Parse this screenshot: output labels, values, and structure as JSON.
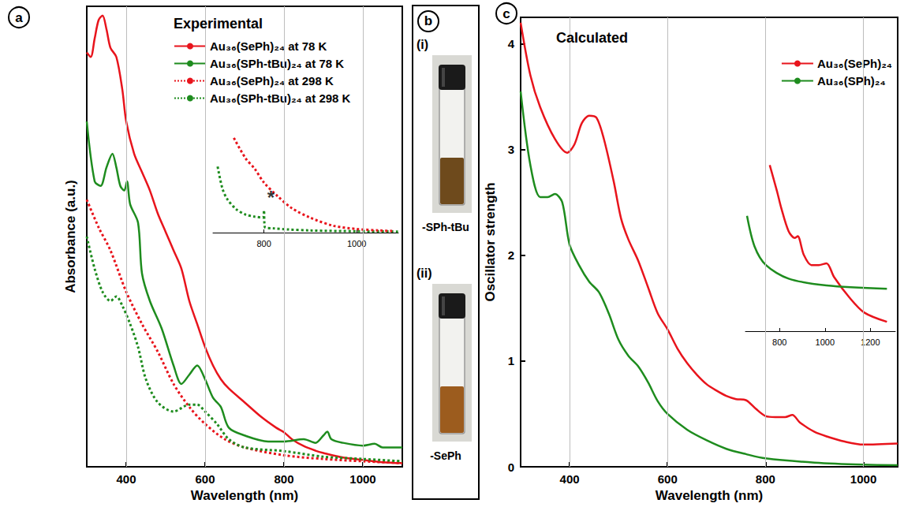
{
  "chart_data": [
    {
      "type": "line",
      "panel_letter": "a",
      "title": "Experimental",
      "x_label": "Wavelength (nm)",
      "y_label": "Absorbance (a.u.)",
      "xlim": [
        300,
        1100
      ],
      "xticks": [
        400,
        600,
        800,
        1000
      ],
      "ylim": [
        0,
        1
      ],
      "tick_labels": "x",
      "grid": true,
      "legend": "upper right",
      "series": [
        {
          "name": "Au₃₆(SePh)₂₄ at 78 K",
          "color": "#e8141c",
          "line_style": "solid",
          "x": [
            300,
            310,
            320,
            330,
            340,
            350,
            360,
            375,
            390,
            400,
            420,
            440,
            460,
            480,
            500,
            520,
            540,
            560,
            580,
            600,
            620,
            640,
            660,
            700,
            740,
            780,
            800,
            820,
            850,
            880,
            900,
            950,
            1000,
            1050,
            1100
          ],
          "values": [
            0.9,
            0.89,
            0.93,
            0.97,
            0.98,
            0.95,
            0.91,
            0.89,
            0.82,
            0.75,
            0.68,
            0.64,
            0.6,
            0.55,
            0.51,
            0.47,
            0.43,
            0.36,
            0.31,
            0.26,
            0.22,
            0.19,
            0.17,
            0.14,
            0.11,
            0.085,
            0.075,
            0.06,
            0.045,
            0.035,
            0.03,
            0.02,
            0.015,
            0.01,
            0.008
          ]
        },
        {
          "name": "Au₃₆(SPh-tBu)₂₄ at 78 K",
          "color": "#1e8c1e",
          "line_style": "solid",
          "x": [
            300,
            320,
            335,
            350,
            365,
            375,
            385,
            395,
            402,
            410,
            430,
            440,
            460,
            490,
            520,
            540,
            560,
            580,
            600,
            620,
            640,
            660,
            700,
            760,
            800,
            850,
            880,
            900,
            910,
            920,
            950,
            1000,
            1030,
            1050,
            1100
          ],
          "values": [
            0.75,
            0.62,
            0.61,
            0.65,
            0.68,
            0.65,
            0.61,
            0.6,
            0.62,
            0.57,
            0.53,
            0.42,
            0.36,
            0.3,
            0.22,
            0.18,
            0.2,
            0.22,
            0.19,
            0.15,
            0.13,
            0.085,
            0.068,
            0.055,
            0.055,
            0.06,
            0.052,
            0.068,
            0.076,
            0.06,
            0.052,
            0.046,
            0.05,
            0.042,
            0.042
          ]
        },
        {
          "name": "Au₃₆(SePh)₂₄ at 298 K",
          "color": "#e8141c",
          "line_style": "dotted",
          "x": [
            300,
            330,
            360,
            400,
            440,
            480,
            520,
            560,
            600,
            650,
            700,
            800,
            900,
            1000,
            1100
          ],
          "values": [
            0.58,
            0.52,
            0.47,
            0.38,
            0.31,
            0.25,
            0.18,
            0.13,
            0.093,
            0.06,
            0.042,
            0.025,
            0.017,
            0.012,
            0.008
          ]
        },
        {
          "name": "Au₃₆(SPh-tBu)₂₄ at 298 K",
          "color": "#1e8c1e",
          "line_style": "dotted",
          "x": [
            300,
            320,
            340,
            360,
            375,
            390,
            410,
            430,
            450,
            480,
            520,
            560,
            580,
            600,
            630,
            660,
            700,
            800,
            900,
            1000,
            1100
          ],
          "values": [
            0.5,
            0.43,
            0.38,
            0.36,
            0.37,
            0.35,
            0.31,
            0.26,
            0.19,
            0.14,
            0.12,
            0.135,
            0.135,
            0.12,
            0.093,
            0.06,
            0.042,
            0.034,
            0.022,
            0.017,
            0.012
          ]
        }
      ]
    },
    {
      "type": "line",
      "xlim": [
        690,
        1090
      ],
      "xticks": [
        800,
        1000
      ],
      "ylim": [
        0,
        1
      ],
      "tick_labels": "x",
      "grid": false,
      "annotations": [
        {
          "text": "*",
          "x": 815,
          "y": 0.33
        }
      ],
      "series": [
        {
          "color": "#1e8c1e",
          "line_style": "dotted",
          "x": [
            700,
            710,
            720,
            740,
            760,
            780,
            798,
            800,
            802,
            820,
            850,
            900,
            1000,
            1090
          ],
          "values": [
            0.62,
            0.42,
            0.32,
            0.22,
            0.17,
            0.15,
            0.14,
            0.21,
            0.05,
            0.04,
            0.03,
            0.02,
            0.013,
            0.01
          ]
        },
        {
          "color": "#e8141c",
          "line_style": "dotted",
          "x": [
            735,
            760,
            780,
            800,
            830,
            860,
            900,
            950,
            1000,
            1050,
            1080
          ],
          "values": [
            0.89,
            0.7,
            0.6,
            0.47,
            0.34,
            0.23,
            0.14,
            0.064,
            0.034,
            0.02,
            0.015
          ]
        }
      ]
    },
    {
      "type": "line",
      "panel_letter": "c",
      "title": "Calculated",
      "x_label": "Wavelength (nm)",
      "y_label": "Oscillator strength",
      "xlim": [
        300,
        1070
      ],
      "xticks": [
        400,
        600,
        800,
        1000
      ],
      "ylim": [
        0,
        4.25
      ],
      "yticks": [
        0,
        1,
        2,
        3,
        4
      ],
      "grid": true,
      "legend": "upper right",
      "series": [
        {
          "name": "Au₃₆(SePh)₂₄",
          "color": "#e8141c",
          "line_style": "solid",
          "x": [
            300,
            320,
            340,
            370,
            395,
            410,
            425,
            440,
            455,
            470,
            490,
            505,
            520,
            540,
            560,
            580,
            600,
            620,
            640,
            660,
            680,
            700,
            720,
            740,
            760,
            780,
            800,
            820,
            840,
            855,
            870,
            900,
            930,
            960,
            1000,
            1070
          ],
          "values": [
            4.2,
            3.7,
            3.4,
            3.1,
            2.97,
            3.05,
            3.25,
            3.32,
            3.3,
            3.1,
            2.7,
            2.35,
            2.15,
            1.95,
            1.7,
            1.45,
            1.3,
            1.12,
            0.98,
            0.87,
            0.78,
            0.72,
            0.67,
            0.64,
            0.63,
            0.55,
            0.48,
            0.47,
            0.47,
            0.49,
            0.42,
            0.33,
            0.28,
            0.24,
            0.21,
            0.22
          ]
        },
        {
          "name": "Au₃₆(SPh)₂₄",
          "color": "#1e8c1e",
          "line_style": "solid",
          "x": [
            300,
            320,
            340,
            355,
            370,
            385,
            400,
            420,
            440,
            460,
            480,
            500,
            520,
            540,
            560,
            580,
            600,
            640,
            680,
            720,
            760,
            800,
            900,
            1000,
            1070
          ],
          "values": [
            3.55,
            2.85,
            2.55,
            2.55,
            2.58,
            2.5,
            2.1,
            1.9,
            1.75,
            1.65,
            1.45,
            1.2,
            1.05,
            0.95,
            0.8,
            0.62,
            0.5,
            0.35,
            0.25,
            0.17,
            0.12,
            0.08,
            0.04,
            0.02,
            0.015
          ]
        }
      ]
    },
    {
      "type": "line",
      "xlim": [
        650,
        1310
      ],
      "xticks": [
        800,
        1000,
        1200
      ],
      "ylim": [
        0,
        1
      ],
      "tick_labels": "x",
      "grid": false,
      "series": [
        {
          "color": "#e8141c",
          "line_style": "solid",
          "x": [
            757,
            790,
            807,
            840,
            867,
            880,
            907,
            940,
            973,
            1007,
            1040,
            1107,
            1173,
            1273
          ],
          "values": [
            0.98,
            0.82,
            0.73,
            0.59,
            0.55,
            0.56,
            0.45,
            0.39,
            0.39,
            0.4,
            0.32,
            0.2,
            0.11,
            0.055
          ]
        },
        {
          "color": "#1e8c1e",
          "line_style": "solid",
          "x": [
            657,
            690,
            740,
            840,
            1007,
            1273
          ],
          "values": [
            0.68,
            0.5,
            0.39,
            0.31,
            0.27,
            0.25
          ]
        }
      ]
    }
  ],
  "photos": {
    "panel_letter": "b",
    "items": [
      {
        "label": "(i)",
        "caption": "-SPh-tBu"
      },
      {
        "label": "(ii)",
        "caption": "-SePh"
      }
    ]
  }
}
